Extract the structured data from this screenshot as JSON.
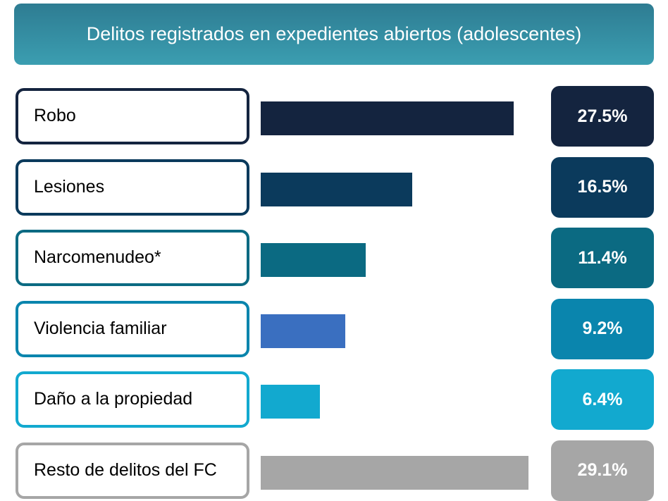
{
  "chart_data": {
    "type": "bar",
    "title": "Delitos registrados en expedientes abiertos (adolescentes)",
    "categories": [
      "Robo",
      "Lesiones",
      "Narcomenudeo*",
      "Violencia familiar",
      "Daño a la propiedad",
      "Resto de delitos del FC"
    ],
    "values": [
      27.5,
      16.5,
      11.4,
      9.2,
      6.4,
      29.1
    ],
    "value_labels": [
      "27.5%",
      "16.5%",
      "11.4%",
      "9.2%",
      "6.4%",
      "29.1%"
    ],
    "colors": [
      "#14243f",
      "#0b3a5c",
      "#0b6a82",
      "#3a6fc0",
      "#12a9cf",
      "#a6a6a6"
    ]
  }
}
